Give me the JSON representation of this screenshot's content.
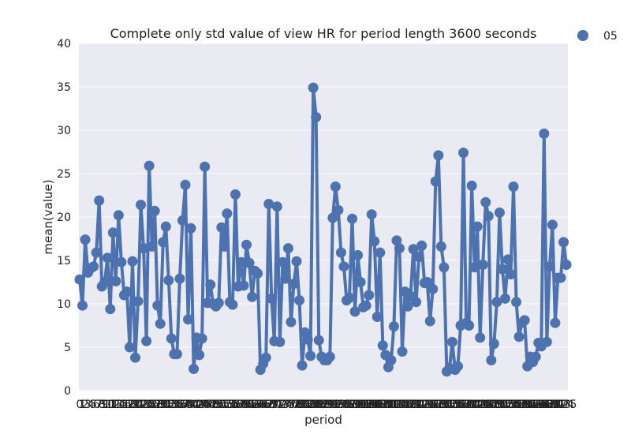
{
  "chart_data": {
    "type": "line",
    "title": "Complete only std value of view HR for period length 3600 seconds",
    "xlabel": "period",
    "ylabel": "mean(value)",
    "ylim": [
      0,
      40
    ],
    "yticks": [
      0,
      5,
      10,
      15,
      20,
      25,
      30,
      35,
      40
    ],
    "grid": true,
    "legend": "top-right",
    "series": [
      {
        "name": "05",
        "color": "#4c72b0",
        "values": [
          12.8,
          9.8,
          17.4,
          13.6,
          14.1,
          14.3,
          15.9,
          21.9,
          12.0,
          12.5,
          15.3,
          9.4,
          18.2,
          12.6,
          20.2,
          14.8,
          11.0,
          11.4,
          5.0,
          14.9,
          3.8,
          10.3,
          21.4,
          16.4,
          5.7,
          25.9,
          16.6,
          20.7,
          9.8,
          7.7,
          17.1,
          18.9,
          12.7,
          6.0,
          4.2,
          4.2,
          12.9,
          19.6,
          23.7,
          8.2,
          18.7,
          2.5,
          6.1,
          4.1,
          6.0,
          25.8,
          10.1,
          12.2,
          10.0,
          9.7,
          10.1,
          18.8,
          16.6,
          20.4,
          10.2,
          9.9,
          22.6,
          12.0,
          14.8,
          12.1,
          16.8,
          14.7,
          10.8,
          13.8,
          13.5,
          2.4,
          3.1,
          3.8,
          21.5,
          10.6,
          5.7,
          21.2,
          5.6,
          14.8,
          12.9,
          16.4,
          7.9,
          12.3,
          14.9,
          10.4,
          2.9,
          6.7,
          5.9,
          4.0,
          34.9,
          31.5,
          5.8,
          3.9,
          3.5,
          3.5,
          3.9,
          19.9,
          23.5,
          20.8,
          15.9,
          14.3,
          10.4,
          10.7,
          19.8,
          9.1,
          15.6,
          12.5,
          9.6,
          9.8,
          11.0,
          20.3,
          17.2,
          8.5,
          15.9,
          5.2,
          4.1,
          2.7,
          3.5,
          7.4,
          17.3,
          16.4,
          4.5,
          11.4,
          9.7,
          10.9,
          16.3,
          10.2,
          15.4,
          16.7,
          12.4,
          12.5,
          8.0,
          11.7,
          24.1,
          27.1,
          16.6,
          14.2,
          2.2,
          2.6,
          5.6,
          2.4,
          2.8,
          7.5,
          27.4,
          7.8,
          7.5,
          23.6,
          14.2,
          18.9,
          6.1,
          14.5,
          21.7,
          20.1,
          3.5,
          5.4,
          10.2,
          20.5,
          14.0,
          10.6,
          15.1,
          13.4,
          23.5,
          10.2,
          6.2,
          7.8,
          8.1,
          2.8,
          3.9,
          3.3,
          3.9,
          5.5,
          5.1,
          29.6,
          5.6,
          14.3,
          19.1,
          7.8,
          13.0,
          13.0,
          17.1,
          14.5
        ]
      }
    ]
  }
}
